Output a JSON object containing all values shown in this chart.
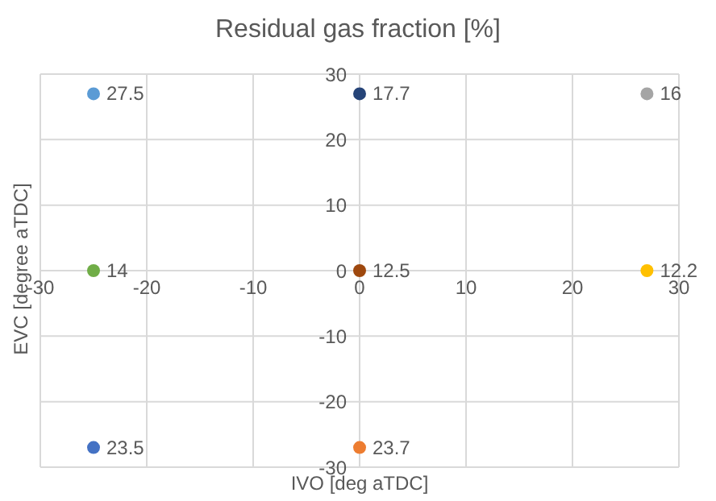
{
  "chart_data": {
    "type": "scatter",
    "title": "Residual gas fraction [%]",
    "xlabel": "IVO [deg aTDC]",
    "ylabel": "EVC [degree aTDC]",
    "x": [
      -25,
      0,
      27,
      -25,
      0,
      27,
      -25,
      0
    ],
    "values": [
      27,
      27,
      27,
      0,
      0,
      0,
      -27,
      -27
    ],
    "colors": [
      "#5b9bd5",
      "#264478",
      "#a5a5a5",
      "#70ad47",
      "#9e480e",
      "#ffc000",
      "#4472c4",
      "#ed7d31"
    ],
    "annotations": [
      {
        "text": "27.5",
        "x": -25,
        "y": 27
      },
      {
        "text": "17.7",
        "x": 0,
        "y": 27
      },
      {
        "text": "16",
        "x": 27,
        "y": 27
      },
      {
        "text": "14",
        "x": -25,
        "y": 0
      },
      {
        "text": "12.5",
        "x": 0,
        "y": 0
      },
      {
        "text": "12.2",
        "x": 27,
        "y": 0
      },
      {
        "text": "23.5",
        "x": -25,
        "y": -27
      },
      {
        "text": "23.7",
        "x": 0,
        "y": -27
      }
    ],
    "xlim": [
      -30,
      30
    ],
    "xticks": [
      -30,
      -20,
      -10,
      0,
      10,
      20,
      30
    ],
    "ylim": [
      -30,
      30
    ],
    "yticks": [
      -30,
      -20,
      -10,
      0,
      10,
      20,
      30
    ],
    "grid": true,
    "marker": "circle"
  }
}
